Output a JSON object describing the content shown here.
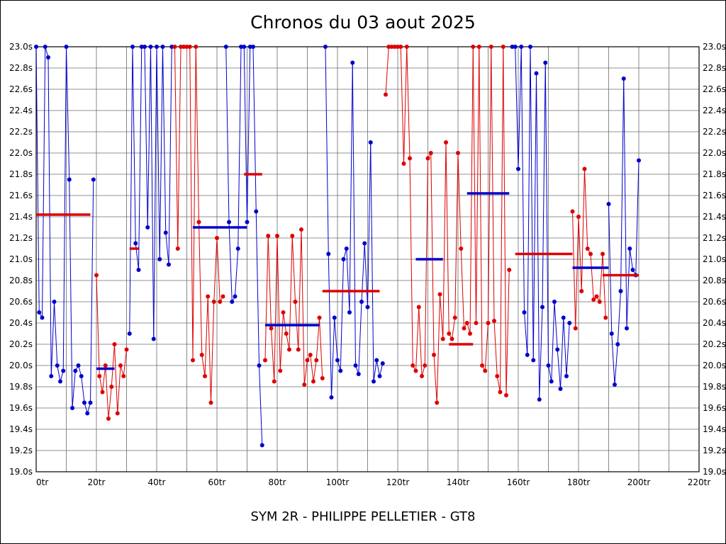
{
  "title": "Chronos du 03 aout 2025",
  "subtitle": "SYM 2R - PHILIPPE PELLETIER - GT8",
  "chart_data": {
    "type": "line",
    "title": "Chronos du 03 aout 2025",
    "xlabel_unit": "tr",
    "ylabel_unit": "s",
    "xlim": [
      0,
      220
    ],
    "ylim": [
      19.0,
      23.0
    ],
    "y_step": 0.2,
    "x_label_step": 20,
    "x_grid_step": 10,
    "grid": true,
    "clip_max": 23.0,
    "colors": {
      "b": "#0000cc",
      "r": "#dd0000"
    },
    "y_tick_labels": [
      "23.0s",
      "22.8s",
      "22.6s",
      "22.4s",
      "22.2s",
      "22.0s",
      "21.8s",
      "21.6s",
      "21.4s",
      "21.2s",
      "21.0s",
      "20.8s",
      "20.6s",
      "20.4s",
      "20.2s",
      "20.0s",
      "19.8s",
      "19.6s",
      "19.4s",
      "19.2s",
      "19.0s"
    ],
    "x_tick_labels": [
      "0tr",
      "20tr",
      "40tr",
      "60tr",
      "80tr",
      "100tr",
      "120tr",
      "140tr",
      "160tr",
      "180tr",
      "200tr",
      "220tr"
    ],
    "laps": [
      [
        0,
        23.0,
        "b"
      ],
      [
        1,
        20.5,
        "b"
      ],
      [
        2,
        20.45,
        "b"
      ],
      [
        3,
        23.0,
        "b"
      ],
      [
        4,
        22.9,
        "b"
      ],
      [
        5,
        19.9,
        "b"
      ],
      [
        6,
        20.6,
        "b"
      ],
      [
        7,
        20.0,
        "b"
      ],
      [
        8,
        19.85,
        "b"
      ],
      [
        9,
        19.95,
        "b"
      ],
      [
        10,
        23.0,
        "b"
      ],
      [
        11,
        21.75,
        "b"
      ],
      [
        12,
        19.6,
        "b"
      ],
      [
        13,
        19.95,
        "b"
      ],
      [
        14,
        20.0,
        "b"
      ],
      [
        15,
        19.9,
        "b"
      ],
      [
        16,
        19.65,
        "b"
      ],
      [
        17,
        19.55,
        "b"
      ],
      [
        18,
        19.65,
        "b"
      ],
      [
        19,
        21.75,
        "b"
      ],
      [
        20,
        20.85,
        "r"
      ],
      [
        21,
        19.9,
        "r"
      ],
      [
        22,
        19.75,
        "r"
      ],
      [
        23,
        20.0,
        "r"
      ],
      [
        24,
        19.5,
        "r"
      ],
      [
        25,
        19.8,
        "r"
      ],
      [
        26,
        20.2,
        "r"
      ],
      [
        27,
        19.55,
        "r"
      ],
      [
        28,
        20.0,
        "r"
      ],
      [
        29,
        19.9,
        "r"
      ],
      [
        30,
        20.15,
        "r"
      ],
      [
        31,
        20.3,
        "b"
      ],
      [
        32,
        23.0,
        "b"
      ],
      [
        33,
        21.15,
        "b"
      ],
      [
        34,
        20.9,
        "b"
      ],
      [
        35,
        23.0,
        "b"
      ],
      [
        36,
        23.0,
        "b"
      ],
      [
        37,
        21.3,
        "b"
      ],
      [
        38,
        23.0,
        "b"
      ],
      [
        39,
        20.25,
        "b"
      ],
      [
        40,
        23.0,
        "b"
      ],
      [
        41,
        21.0,
        "b"
      ],
      [
        42,
        23.0,
        "b"
      ],
      [
        43,
        21.25,
        "b"
      ],
      [
        44,
        20.95,
        "b"
      ],
      [
        45,
        23.0,
        "b"
      ],
      [
        46,
        23.0,
        "r"
      ],
      [
        47,
        21.1,
        "r"
      ],
      [
        48,
        23.0,
        "r"
      ],
      [
        49,
        23.0,
        "r"
      ],
      [
        50,
        23.0,
        "r"
      ],
      [
        51,
        23.0,
        "r"
      ],
      [
        52,
        20.05,
        "r"
      ],
      [
        53,
        23.0,
        "r"
      ],
      [
        54,
        21.35,
        "r"
      ],
      [
        55,
        20.1,
        "r"
      ],
      [
        56,
        19.9,
        "r"
      ],
      [
        57,
        20.65,
        "r"
      ],
      [
        58,
        19.65,
        "r"
      ],
      [
        59,
        20.6,
        "r"
      ],
      [
        60,
        21.2,
        "r"
      ],
      [
        61,
        20.6,
        "r"
      ],
      [
        62,
        20.65,
        "r"
      ],
      [
        63,
        23.0,
        "b"
      ],
      [
        64,
        21.35,
        "b"
      ],
      [
        65,
        20.6,
        "b"
      ],
      [
        66,
        20.65,
        "b"
      ],
      [
        67,
        21.1,
        "b"
      ],
      [
        68,
        23.0,
        "b"
      ],
      [
        69,
        23.0,
        "b"
      ],
      [
        70,
        21.35,
        "b"
      ],
      [
        71,
        23.0,
        "b"
      ],
      [
        72,
        23.0,
        "b"
      ],
      [
        73,
        21.45,
        "b"
      ],
      [
        74,
        20.0,
        "b"
      ],
      [
        75,
        19.25,
        "b"
      ],
      [
        76,
        20.05,
        "r"
      ],
      [
        77,
        21.22,
        "r"
      ],
      [
        78,
        20.35,
        "r"
      ],
      [
        79,
        19.85,
        "r"
      ],
      [
        80,
        21.22,
        "r"
      ],
      [
        81,
        19.95,
        "r"
      ],
      [
        82,
        20.5,
        "r"
      ],
      [
        83,
        20.3,
        "r"
      ],
      [
        84,
        20.15,
        "r"
      ],
      [
        85,
        21.22,
        "r"
      ],
      [
        86,
        20.6,
        "r"
      ],
      [
        87,
        20.15,
        "r"
      ],
      [
        88,
        21.28,
        "r"
      ],
      [
        89,
        19.82,
        "r"
      ],
      [
        90,
        20.05,
        "r"
      ],
      [
        91,
        20.1,
        "r"
      ],
      [
        92,
        19.85,
        "r"
      ],
      [
        93,
        20.05,
        "r"
      ],
      [
        94,
        20.45,
        "r"
      ],
      [
        95,
        19.88,
        "r"
      ],
      [
        96,
        23.0,
        "b"
      ],
      [
        97,
        21.05,
        "b"
      ],
      [
        98,
        19.7,
        "b"
      ],
      [
        99,
        20.45,
        "b"
      ],
      [
        100,
        20.05,
        "b"
      ],
      [
        101,
        19.95,
        "b"
      ],
      [
        102,
        21.0,
        "b"
      ],
      [
        103,
        21.1,
        "b"
      ],
      [
        104,
        20.5,
        "b"
      ],
      [
        105,
        22.85,
        "b"
      ],
      [
        106,
        20.0,
        "b"
      ],
      [
        107,
        19.92,
        "b"
      ],
      [
        108,
        20.6,
        "b"
      ],
      [
        109,
        21.15,
        "b"
      ],
      [
        110,
        20.55,
        "b"
      ],
      [
        111,
        22.1,
        "b"
      ],
      [
        112,
        19.85,
        "b"
      ],
      [
        113,
        20.05,
        "b"
      ],
      [
        114,
        19.9,
        "b"
      ],
      [
        115,
        20.02,
        "b"
      ],
      [
        116,
        22.55,
        "r"
      ],
      [
        117,
        23.0,
        "r"
      ],
      [
        118,
        23.0,
        "r"
      ],
      [
        119,
        23.0,
        "r"
      ],
      [
        120,
        23.0,
        "r"
      ],
      [
        121,
        23.0,
        "r"
      ],
      [
        122,
        21.9,
        "r"
      ],
      [
        123,
        23.0,
        "r"
      ],
      [
        124,
        21.95,
        "r"
      ],
      [
        125,
        20.0,
        "r"
      ],
      [
        126,
        19.95,
        "r"
      ],
      [
        127,
        20.55,
        "r"
      ],
      [
        128,
        19.9,
        "r"
      ],
      [
        129,
        20.0,
        "r"
      ],
      [
        130,
        21.95,
        "r"
      ],
      [
        131,
        22.0,
        "r"
      ],
      [
        132,
        20.1,
        "r"
      ],
      [
        133,
        19.65,
        "r"
      ],
      [
        134,
        20.67,
        "r"
      ],
      [
        135,
        20.25,
        "r"
      ],
      [
        136,
        22.1,
        "r"
      ],
      [
        137,
        20.3,
        "r"
      ],
      [
        138,
        20.25,
        "r"
      ],
      [
        139,
        20.45,
        "r"
      ],
      [
        140,
        22.0,
        "r"
      ],
      [
        141,
        21.1,
        "r"
      ],
      [
        142,
        20.35,
        "r"
      ],
      [
        143,
        20.4,
        "r"
      ],
      [
        144,
        20.3,
        "r"
      ],
      [
        145,
        23.0,
        "r"
      ],
      [
        146,
        20.4,
        "r"
      ],
      [
        147,
        23.0,
        "r"
      ],
      [
        148,
        20.0,
        "r"
      ],
      [
        149,
        19.95,
        "r"
      ],
      [
        150,
        20.4,
        "r"
      ],
      [
        151,
        23.0,
        "r"
      ],
      [
        152,
        20.42,
        "r"
      ],
      [
        153,
        19.9,
        "r"
      ],
      [
        154,
        19.75,
        "r"
      ],
      [
        155,
        23.0,
        "r"
      ],
      [
        156,
        19.72,
        "r"
      ],
      [
        157,
        20.9,
        "r"
      ],
      [
        158,
        23.0,
        "b"
      ],
      [
        159,
        23.0,
        "b"
      ],
      [
        160,
        21.85,
        "b"
      ],
      [
        161,
        23.0,
        "b"
      ],
      [
        162,
        20.5,
        "b"
      ],
      [
        163,
        20.1,
        "b"
      ],
      [
        164,
        23.0,
        "b"
      ],
      [
        165,
        20.05,
        "b"
      ],
      [
        166,
        22.75,
        "b"
      ],
      [
        167,
        19.68,
        "b"
      ],
      [
        168,
        20.55,
        "b"
      ],
      [
        169,
        22.85,
        "b"
      ],
      [
        170,
        20.0,
        "b"
      ],
      [
        171,
        19.85,
        "b"
      ],
      [
        172,
        20.6,
        "b"
      ],
      [
        173,
        20.15,
        "b"
      ],
      [
        174,
        19.78,
        "b"
      ],
      [
        175,
        20.45,
        "b"
      ],
      [
        176,
        19.9,
        "b"
      ],
      [
        177,
        20.4,
        "b"
      ],
      [
        178,
        21.45,
        "r"
      ],
      [
        179,
        20.35,
        "r"
      ],
      [
        180,
        21.4,
        "r"
      ],
      [
        181,
        20.7,
        "r"
      ],
      [
        182,
        21.85,
        "r"
      ],
      [
        183,
        21.1,
        "r"
      ],
      [
        184,
        21.05,
        "r"
      ],
      [
        185,
        20.62,
        "r"
      ],
      [
        186,
        20.65,
        "r"
      ],
      [
        187,
        20.6,
        "r"
      ],
      [
        188,
        21.05,
        "r"
      ],
      [
        189,
        20.45,
        "r"
      ],
      [
        190,
        21.52,
        "b"
      ],
      [
        191,
        20.3,
        "b"
      ],
      [
        192,
        19.82,
        "b"
      ],
      [
        193,
        20.2,
        "b"
      ],
      [
        194,
        20.7,
        "b"
      ],
      [
        195,
        22.7,
        "b"
      ],
      [
        196,
        20.35,
        "b"
      ],
      [
        197,
        21.1,
        "b"
      ],
      [
        198,
        20.9,
        "b"
      ],
      [
        199,
        20.85,
        "b"
      ],
      [
        200,
        21.93,
        "b"
      ]
    ],
    "stint_average_bars": [
      {
        "x1": 0,
        "x2": 18,
        "y": 21.42,
        "color": "r"
      },
      {
        "x1": 20,
        "x2": 26,
        "y": 19.97,
        "color": "b"
      },
      {
        "x1": 31,
        "x2": 34,
        "y": 21.1,
        "color": "r"
      },
      {
        "x1": 52,
        "x2": 70,
        "y": 21.3,
        "color": "b"
      },
      {
        "x1": 69,
        "x2": 75,
        "y": 21.8,
        "color": "r"
      },
      {
        "x1": 76,
        "x2": 94,
        "y": 20.38,
        "color": "b"
      },
      {
        "x1": 95,
        "x2": 114,
        "y": 20.7,
        "color": "r"
      },
      {
        "x1": 126,
        "x2": 135,
        "y": 21.0,
        "color": "b"
      },
      {
        "x1": 137,
        "x2": 145,
        "y": 20.2,
        "color": "r"
      },
      {
        "x1": 143,
        "x2": 157,
        "y": 21.62,
        "color": "b"
      },
      {
        "x1": 159,
        "x2": 178,
        "y": 21.05,
        "color": "r"
      },
      {
        "x1": 178,
        "x2": 190,
        "y": 20.92,
        "color": "b"
      },
      {
        "x1": 188,
        "x2": 200,
        "y": 20.85,
        "color": "r"
      }
    ]
  }
}
